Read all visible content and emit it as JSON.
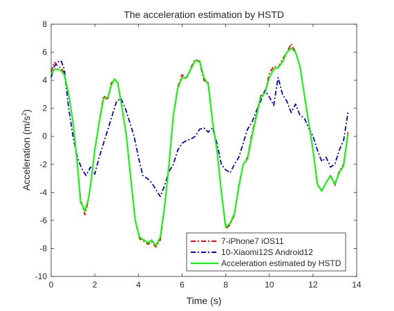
{
  "chart_data": {
    "type": "line",
    "title": "The acceleration estimation by HSTD",
    "xlabel": "Time (s)",
    "ylabel": "Acceleration (m/s",
    "ylabel_sup": "2",
    "ylabel_end": ")",
    "xlim": [
      0,
      14
    ],
    "ylim": [
      -10,
      8
    ],
    "xticks": [
      0,
      2,
      4,
      6,
      8,
      10,
      12,
      14
    ],
    "yticks": [
      -10,
      -8,
      -6,
      -4,
      -2,
      0,
      2,
      4,
      6,
      8
    ],
    "grid": false,
    "legend_position": "bottom-right",
    "series": [
      {
        "name": "7-iPhone7 iOS11",
        "color": "#ff0000",
        "style": "dash-dot",
        "x": [
          0,
          0.15,
          0.3,
          0.45,
          0.6,
          0.8,
          1.0,
          1.2,
          1.35,
          1.55,
          1.7,
          1.8,
          2.0,
          2.2,
          2.4,
          2.6,
          2.75,
          2.9,
          3.05,
          3.25,
          3.45,
          3.65,
          3.85,
          4.05,
          4.25,
          4.45,
          4.6,
          4.8,
          5.0,
          5.2,
          5.4,
          5.6,
          5.8,
          6.0,
          6.2,
          6.4,
          6.6,
          6.8,
          7.0,
          7.2,
          7.4,
          7.6,
          7.8,
          8.0,
          8.2,
          8.4,
          8.6,
          8.8,
          9.0,
          9.2,
          9.4,
          9.6,
          9.8,
          10.0,
          10.2,
          10.4,
          10.6,
          10.8,
          11.0,
          11.2,
          11.4,
          11.6,
          11.8,
          12.0,
          12.2,
          12.4,
          12.6,
          12.8,
          13.0,
          13.2,
          13.4,
          13.6
        ],
        "values": [
          4.6,
          5.3,
          5.0,
          4.9,
          4.5,
          3.0,
          1.0,
          -2.0,
          -4.5,
          -5.6,
          -4.6,
          -3.5,
          -1.0,
          1.0,
          2.9,
          2.6,
          3.8,
          4.0,
          3.9,
          2.0,
          0.0,
          -3.0,
          -6.0,
          -7.3,
          -7.5,
          -7.7,
          -7.5,
          -7.9,
          -7.4,
          -5.0,
          -2.0,
          1.5,
          3.5,
          4.4,
          4.1,
          4.9,
          5.5,
          5.3,
          4.0,
          3.8,
          1.0,
          -1.0,
          -4.0,
          -6.6,
          -6.3,
          -5.6,
          -3.5,
          -2.0,
          -1.5,
          0.2,
          1.5,
          2.9,
          3.1,
          4.5,
          5.0,
          4.9,
          5.5,
          6.0,
          6.6,
          6.0,
          5.0,
          3.0,
          1.0,
          -1.0,
          -3.5,
          -3.9,
          -3.3,
          -2.8,
          -3.5,
          -2.5,
          -2.0,
          0.3
        ]
      },
      {
        "name": "10-Xiaomi12S Android12",
        "color": "#0000cc",
        "style": "dash-dot",
        "x": [
          0,
          0.15,
          0.3,
          0.45,
          0.6,
          0.8,
          1.0,
          1.2,
          1.4,
          1.6,
          1.8,
          2.0,
          2.2,
          2.4,
          2.6,
          2.8,
          3.0,
          3.2,
          3.4,
          3.6,
          3.8,
          4.0,
          4.2,
          4.4,
          4.6,
          4.8,
          5.0,
          5.2,
          5.4,
          5.6,
          5.8,
          6.0,
          6.2,
          6.4,
          6.6,
          6.8,
          7.0,
          7.2,
          7.4,
          7.6,
          7.8,
          8.0,
          8.2,
          8.4,
          8.6,
          8.8,
          9.0,
          9.2,
          9.4,
          9.6,
          9.8,
          10.0,
          10.2,
          10.4,
          10.6,
          10.8,
          11.0,
          11.2,
          11.4,
          11.6,
          11.8,
          12.0,
          12.2,
          12.4,
          12.6,
          12.8,
          13.0,
          13.2,
          13.4,
          13.6
        ],
        "values": [
          4.2,
          5.0,
          5.3,
          5.4,
          4.8,
          2.0,
          0.0,
          -1.5,
          -2.3,
          -2.8,
          -2.2,
          -2.7,
          -1.5,
          -0.5,
          0.5,
          1.5,
          2.5,
          2.7,
          2.0,
          1.0,
          0.0,
          -1.5,
          -2.8,
          -3.0,
          -3.3,
          -3.8,
          -4.3,
          -3.5,
          -2.5,
          -2.0,
          -1.0,
          -0.5,
          -0.3,
          -0.2,
          0.0,
          0.5,
          0.6,
          0.3,
          0.6,
          -0.5,
          -2.0,
          -2.4,
          -2.6,
          -2.0,
          -1.5,
          -0.5,
          0.5,
          1.0,
          1.8,
          2.5,
          3.3,
          2.8,
          2.2,
          4.2,
          3.0,
          2.5,
          1.7,
          2.3,
          1.5,
          1.3,
          0.6,
          0.0,
          -1.0,
          -1.8,
          -1.5,
          -2.2,
          -2.0,
          -1.0,
          -0.3,
          1.7
        ]
      },
      {
        "name": "Acceleration estimated by HSTD",
        "color": "#00ff00",
        "style": "solid",
        "x": [
          0,
          0.15,
          0.3,
          0.45,
          0.6,
          0.8,
          1.0,
          1.2,
          1.35,
          1.55,
          1.7,
          1.8,
          2.0,
          2.2,
          2.4,
          2.6,
          2.75,
          2.9,
          3.05,
          3.25,
          3.45,
          3.65,
          3.85,
          4.05,
          4.25,
          4.45,
          4.6,
          4.8,
          5.0,
          5.2,
          5.4,
          5.6,
          5.8,
          6.0,
          6.2,
          6.4,
          6.6,
          6.8,
          7.0,
          7.2,
          7.4,
          7.6,
          7.8,
          8.0,
          8.2,
          8.4,
          8.6,
          8.8,
          9.0,
          9.2,
          9.4,
          9.6,
          9.8,
          10.0,
          10.2,
          10.4,
          10.6,
          10.8,
          11.0,
          11.2,
          11.4,
          11.6,
          11.8,
          12.0,
          12.2,
          12.4,
          12.6,
          12.8,
          13.0,
          13.2,
          13.4,
          13.6
        ],
        "values": [
          4.4,
          4.8,
          4.8,
          4.7,
          4.4,
          3.0,
          1.0,
          -2.0,
          -4.7,
          -5.3,
          -4.5,
          -3.6,
          -1.0,
          1.0,
          2.7,
          2.8,
          3.6,
          4.1,
          3.8,
          2.0,
          0.0,
          -3.0,
          -6.0,
          -7.2,
          -7.4,
          -7.6,
          -7.4,
          -7.8,
          -7.2,
          -5.0,
          -2.0,
          1.5,
          3.4,
          4.2,
          4.2,
          4.8,
          5.4,
          5.4,
          4.2,
          3.7,
          1.0,
          -1.0,
          -4.0,
          -6.5,
          -6.2,
          -5.5,
          -3.6,
          -2.0,
          -1.6,
          0.0,
          1.4,
          2.8,
          3.1,
          4.2,
          4.8,
          4.9,
          5.3,
          6.0,
          6.3,
          6.0,
          5.0,
          3.0,
          1.0,
          -1.0,
          -3.4,
          -3.9,
          -3.3,
          -2.8,
          -3.4,
          -2.6,
          -2.1,
          0.2
        ]
      }
    ]
  }
}
